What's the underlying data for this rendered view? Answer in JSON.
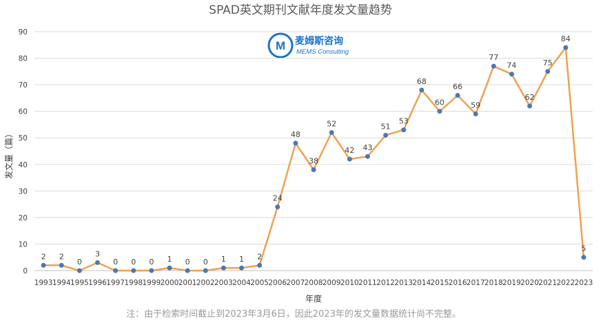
{
  "chart_data": {
    "type": "line",
    "title": "SPAD英文期刊文献年度发文量趋势",
    "xlabel": "年度",
    "ylabel": "发文量（篇）",
    "categories": [
      "1993",
      "1994",
      "1995",
      "1996",
      "1997",
      "1998",
      "1999",
      "2000",
      "2001",
      "2002",
      "2003",
      "2004",
      "2005",
      "2006",
      "2007",
      "2008",
      "2009",
      "2010",
      "2011",
      "2012",
      "2013",
      "2014",
      "2015",
      "2016",
      "2017",
      "2018",
      "2019",
      "2020",
      "2021",
      "2022",
      "2023"
    ],
    "values": [
      2,
      2,
      0,
      3,
      0,
      0,
      0,
      1,
      0,
      0,
      1,
      1,
      2,
      24,
      48,
      38,
      52,
      42,
      43,
      51,
      53,
      68,
      60,
      66,
      59,
      77,
      74,
      62,
      75,
      84,
      5
    ],
    "ylim": [
      0,
      90
    ],
    "yticks": [
      0,
      10,
      20,
      30,
      40,
      50,
      60,
      70,
      80,
      90
    ],
    "grid": true,
    "colors": {
      "line": "#f0a050",
      "marker": "#4a78b5",
      "grid": "#d9d9d9"
    }
  },
  "note": "注：由于检索时间截止到2023年3月6日，因此2023年的发文量数据统计尚不完整。",
  "logo": {
    "cn": "麦姆斯咨询",
    "en": "MEMS Consulting"
  }
}
